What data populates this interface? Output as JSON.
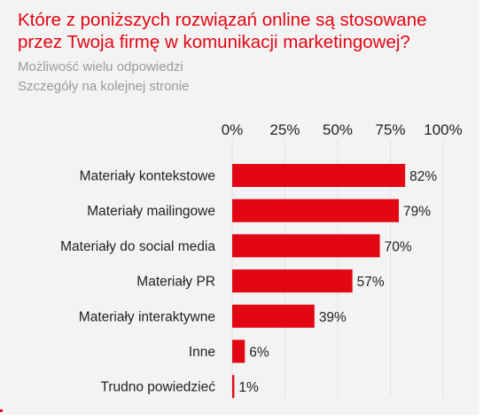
{
  "header": {
    "title": "Które z poniższych rozwiązań online są stosowane przez Twoja firmę w komunikacji marketingowej?",
    "subtitle1": "Możliwość wielu odpowiedzi",
    "subtitle2": "Szczegóły na kolejnej stronie"
  },
  "colors": {
    "accent": "#e30613",
    "bar": "#e30613",
    "background": "#f3f3f3",
    "text": "#222222",
    "muted": "#9a9a9a"
  },
  "chart_data": {
    "type": "bar",
    "orientation": "horizontal",
    "categories": [
      "Materiały kontekstowe",
      "Materiały mailingowe",
      "Materiały do social media",
      "Materiały PR",
      "Materiały interaktywne",
      "Inne",
      "Trudno powiedzieć"
    ],
    "values": [
      82,
      79,
      70,
      57,
      39,
      6,
      1
    ],
    "value_labels": [
      "82%",
      "79%",
      "70%",
      "57%",
      "39%",
      "6%",
      "1%"
    ],
    "xlim": [
      0,
      100
    ],
    "ticks": [
      0,
      25,
      50,
      75,
      100
    ],
    "tick_labels": [
      "0%",
      "25%",
      "50%",
      "75%",
      "100%"
    ],
    "axis_position": "top",
    "grid": true,
    "legend": "none"
  }
}
